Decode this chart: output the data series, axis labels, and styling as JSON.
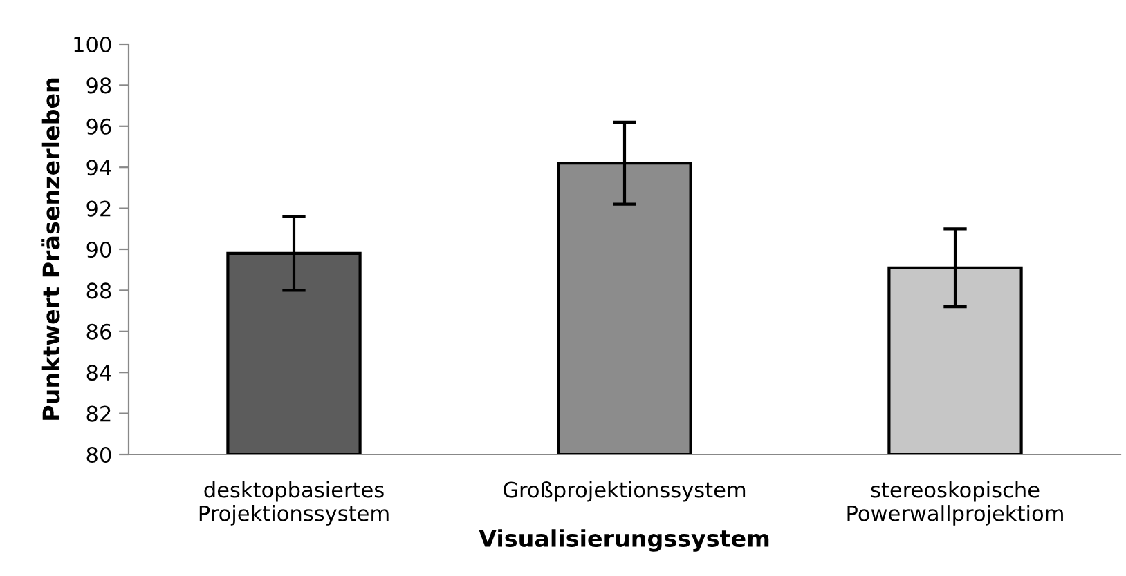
{
  "chart_data": {
    "type": "bar",
    "categories": [
      "desktopbasiertes\nProjektionssystem",
      "Großprojektionssystem",
      "stereoskopische\nPowerwallprojektiom"
    ],
    "values": [
      89.8,
      94.2,
      89.1
    ],
    "errors": [
      1.8,
      2.0,
      1.9
    ],
    "colors": [
      "#5c5c5c",
      "#8c8c8c",
      "#c6c6c6"
    ],
    "xlabel": "Visualisierungssystem",
    "ylabel": "Punktwert Präsenzerleben",
    "ylim": [
      80,
      100
    ],
    "yticks": [
      80,
      82,
      84,
      86,
      88,
      90,
      92,
      94,
      96,
      98,
      100
    ],
    "grid": false,
    "legend": false
  }
}
